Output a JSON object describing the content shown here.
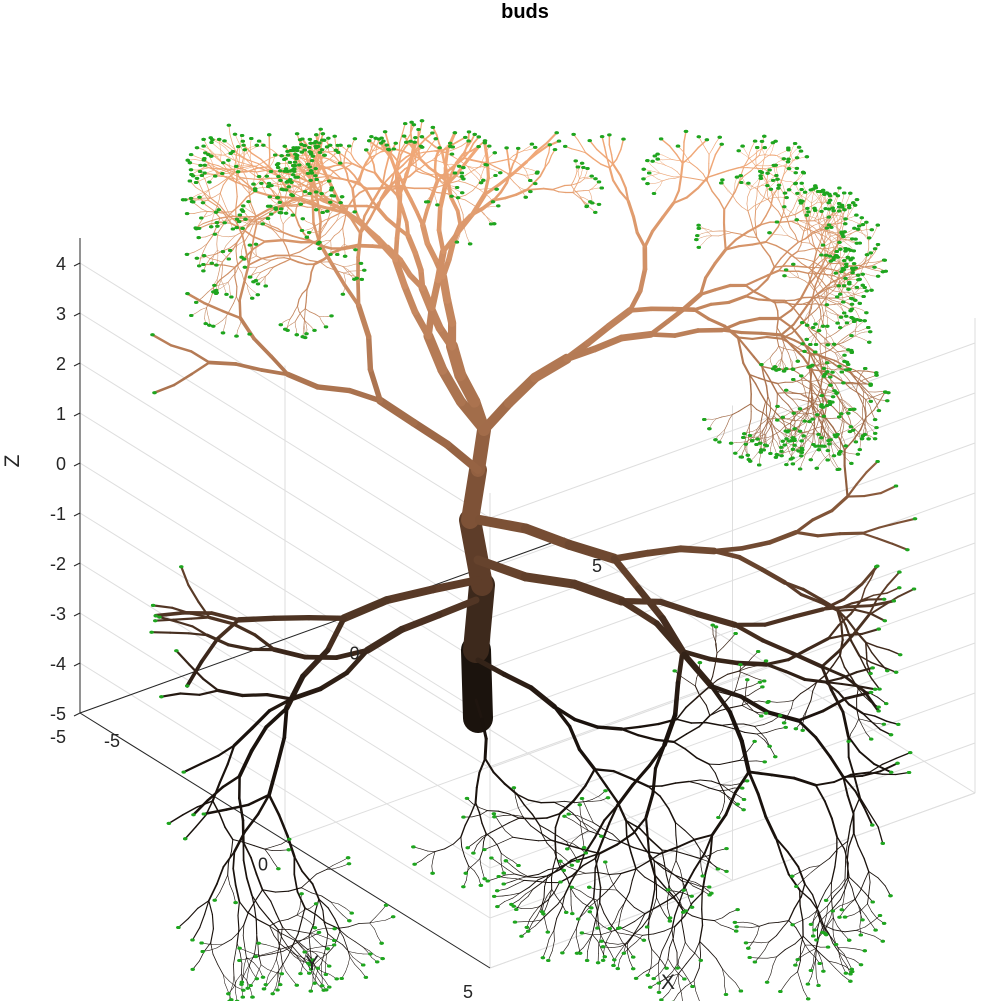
{
  "chart_data": {
    "type": "3d-scatter",
    "title": "buds",
    "xlabel": "X",
    "ylabel": "Y",
    "zlabel": "Z",
    "xlim": [
      -5,
      5
    ],
    "ylim": [
      -5,
      5
    ],
    "zlim": [
      -5,
      4.5
    ],
    "xticks": [
      "-5",
      "0",
      "5"
    ],
    "yticks": [
      "-5",
      "0",
      "5"
    ],
    "zticks": [
      "-5",
      "-4",
      "-3",
      "-2",
      "-1",
      "0",
      "1",
      "2",
      "3",
      "4"
    ],
    "grid": true,
    "colors": {
      "bud": "#1fa51f",
      "trunk_base": "#1a120d",
      "branch_mid": "#8a5a3c",
      "branch_top": "#f0a878",
      "grid": "#dedede",
      "axis": "#262626"
    },
    "series": [
      {
        "name": "buds",
        "marker": "leaf",
        "note_visible": "green bud markers spread through the canopy, roughly x -4..5, y -5..5, z -5..3.5"
      }
    ]
  }
}
